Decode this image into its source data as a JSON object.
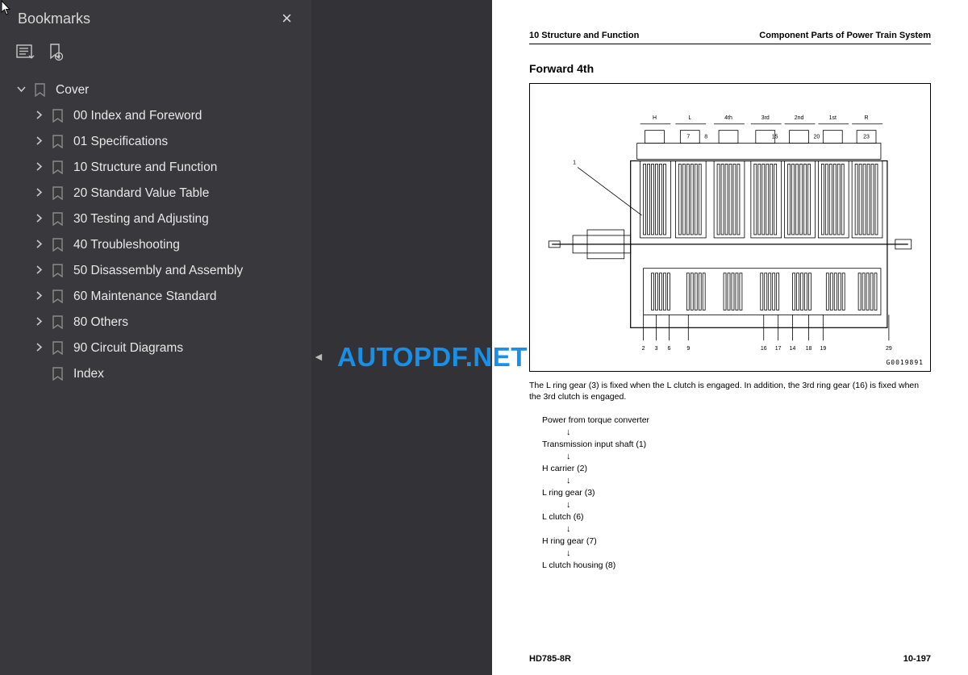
{
  "sidebar": {
    "title": "Bookmarks",
    "root": {
      "expanded": true,
      "label": "Cover",
      "children": [
        {
          "label": "00 Index and Foreword",
          "hasChildren": true
        },
        {
          "label": "01 Specifications",
          "hasChildren": true
        },
        {
          "label": "10 Structure and Function",
          "hasChildren": true
        },
        {
          "label": "20 Standard Value Table",
          "hasChildren": true
        },
        {
          "label": "30 Testing and Adjusting",
          "hasChildren": true
        },
        {
          "label": "40 Troubleshooting",
          "hasChildren": true
        },
        {
          "label": "50 Disassembly and Assembly",
          "hasChildren": true
        },
        {
          "label": "60 Maintenance Standard",
          "hasChildren": true
        },
        {
          "label": "80 Others",
          "hasChildren": true
        },
        {
          "label": "90 Circuit Diagrams",
          "hasChildren": true
        },
        {
          "label": "Index",
          "hasChildren": false
        }
      ]
    }
  },
  "page": {
    "header_left": "10 Structure and Function",
    "header_right": "Component Parts of Power Train System",
    "section_title": "Forward 4th",
    "diagram": {
      "code": "G0019891",
      "top_labels": [
        "H",
        "L",
        "4th",
        "3rd",
        "2nd",
        "1st",
        "R"
      ],
      "top_numbers": [
        "7",
        "8",
        "15",
        "20",
        "23"
      ],
      "bottom_numbers_left": [
        "2",
        "3",
        "6",
        "9"
      ],
      "bottom_numbers_right": [
        "16",
        "17",
        "14",
        "18",
        "19",
        "29"
      ],
      "left_label": "1"
    },
    "caption": "The L ring gear (3) is fixed when the L clutch is engaged. In addition, the 3rd ring gear (16) is fixed when the 3rd clutch is engaged.",
    "flow": [
      "Power from torque converter",
      "Transmission input shaft (1)",
      "H carrier (2)",
      "L ring gear (3)",
      "L clutch (6)",
      "H ring gear (7)",
      "L clutch housing (8)"
    ],
    "footer_left": "HD785-8R",
    "footer_right": "10-197"
  },
  "watermark": "AUTOPDF.NET",
  "colors": {
    "sidebar_bg": "#38383d",
    "gap_bg": "#333337",
    "text_light": "#e0e0e0",
    "watermark": "#1a8fe6"
  }
}
